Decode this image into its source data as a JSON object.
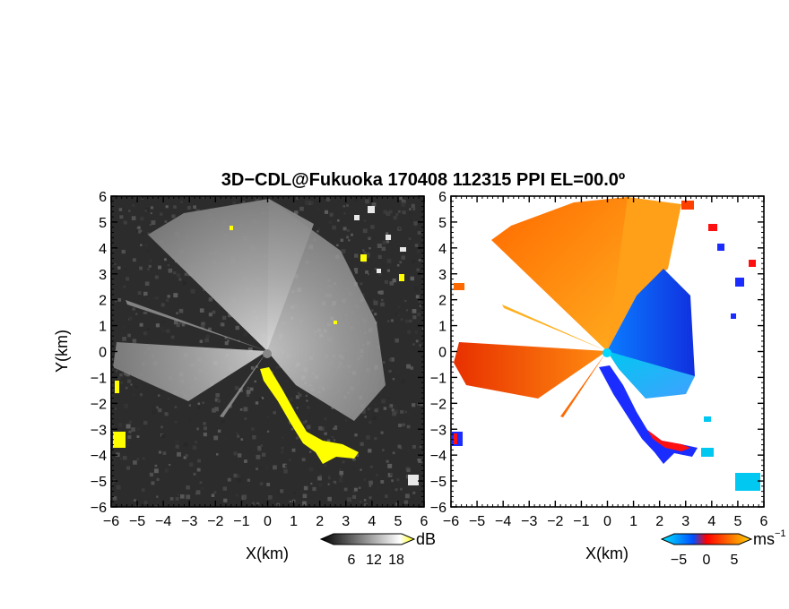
{
  "chart_data": {
    "title": "3D−CDL@Fukuoka 170408 112315 PPI EL=00.0º",
    "panels": [
      {
        "type": "heatmap",
        "field": "reflectivity",
        "xlabel": "X(km)",
        "ylabel": "Y(km)",
        "xlim": [
          -6,
          6
        ],
        "ylim": [
          -6,
          6
        ],
        "xticks": [
          "−6",
          "−5",
          "−4",
          "−3",
          "−2",
          "−1",
          "0",
          "1",
          "2",
          "3",
          "4",
          "5",
          "6"
        ],
        "yticks": [
          "−6",
          "−5",
          "−4",
          "−3",
          "−2",
          "−1",
          "0",
          "1",
          "2",
          "3",
          "4",
          "5",
          "6"
        ],
        "colorbar": {
          "unit": "dB",
          "ticks": [
            "6",
            "12",
            "18"
          ],
          "colors": [
            "#000000",
            "#ffffff",
            "#ffff00"
          ]
        }
      },
      {
        "type": "heatmap",
        "field": "radial velocity",
        "xlabel": "X(km)",
        "xlim": [
          -6,
          6
        ],
        "ylim": [
          -6,
          6
        ],
        "xticks": [
          "−6",
          "−5",
          "−4",
          "−3",
          "−2",
          "−1",
          "0",
          "1",
          "2",
          "3",
          "4",
          "5",
          "6"
        ],
        "yticks": [
          "−6",
          "−5",
          "−4",
          "−3",
          "−2",
          "−1",
          "0",
          "1",
          "2",
          "3",
          "4",
          "5",
          "6"
        ],
        "colorbar": {
          "unit": "ms",
          "unit_exponent": "−1",
          "ticks": [
            "−5",
            "0",
            "5"
          ],
          "colors": [
            "#00e5ff",
            "#0050ff",
            "#ff0000",
            "#ff6a00",
            "#ffd400"
          ]
        }
      }
    ]
  }
}
